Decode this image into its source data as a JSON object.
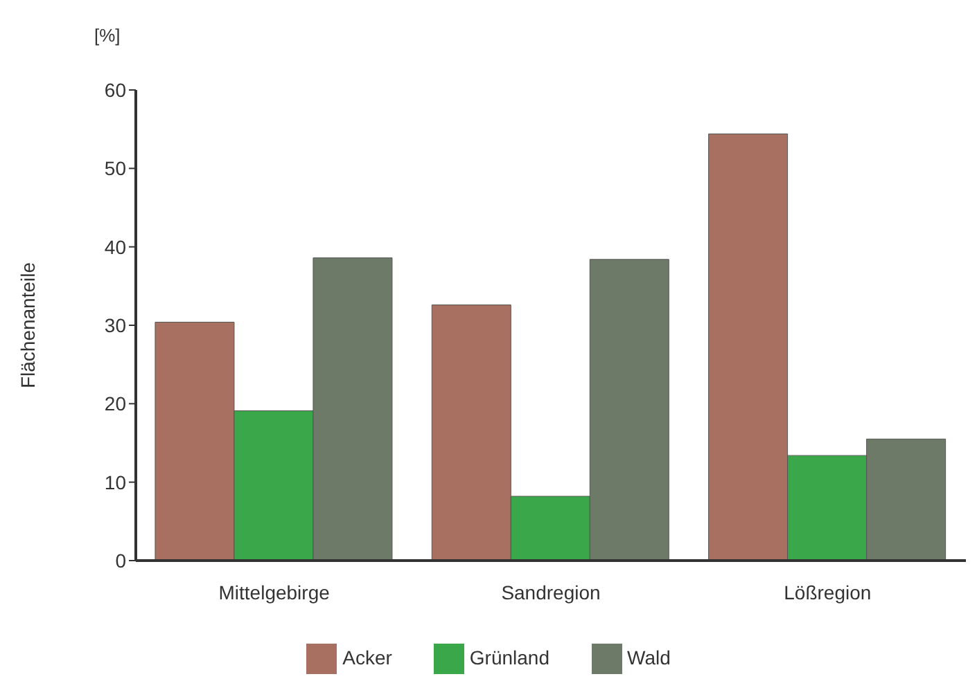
{
  "chart_data": {
    "type": "bar",
    "ylabel": "Flächenanteile",
    "annotations": [
      "[%]"
    ],
    "categories": [
      "Mittelgebirge",
      "Sandregion",
      "Lößregion"
    ],
    "series": [
      {
        "name": "Acker",
        "color": "#a87060",
        "values": [
          30.4,
          32.6,
          54.4
        ]
      },
      {
        "name": "Grünland",
        "color": "#3aa84a",
        "values": [
          19.1,
          8.2,
          13.4
        ]
      },
      {
        "name": "Wald",
        "color": "#6e7a68",
        "values": [
          38.6,
          38.4,
          15.5
        ]
      }
    ],
    "ylim": [
      0,
      60
    ],
    "yticks": [
      0,
      10,
      20,
      30,
      40,
      50,
      60
    ],
    "grid": false,
    "legend": "bottom"
  }
}
